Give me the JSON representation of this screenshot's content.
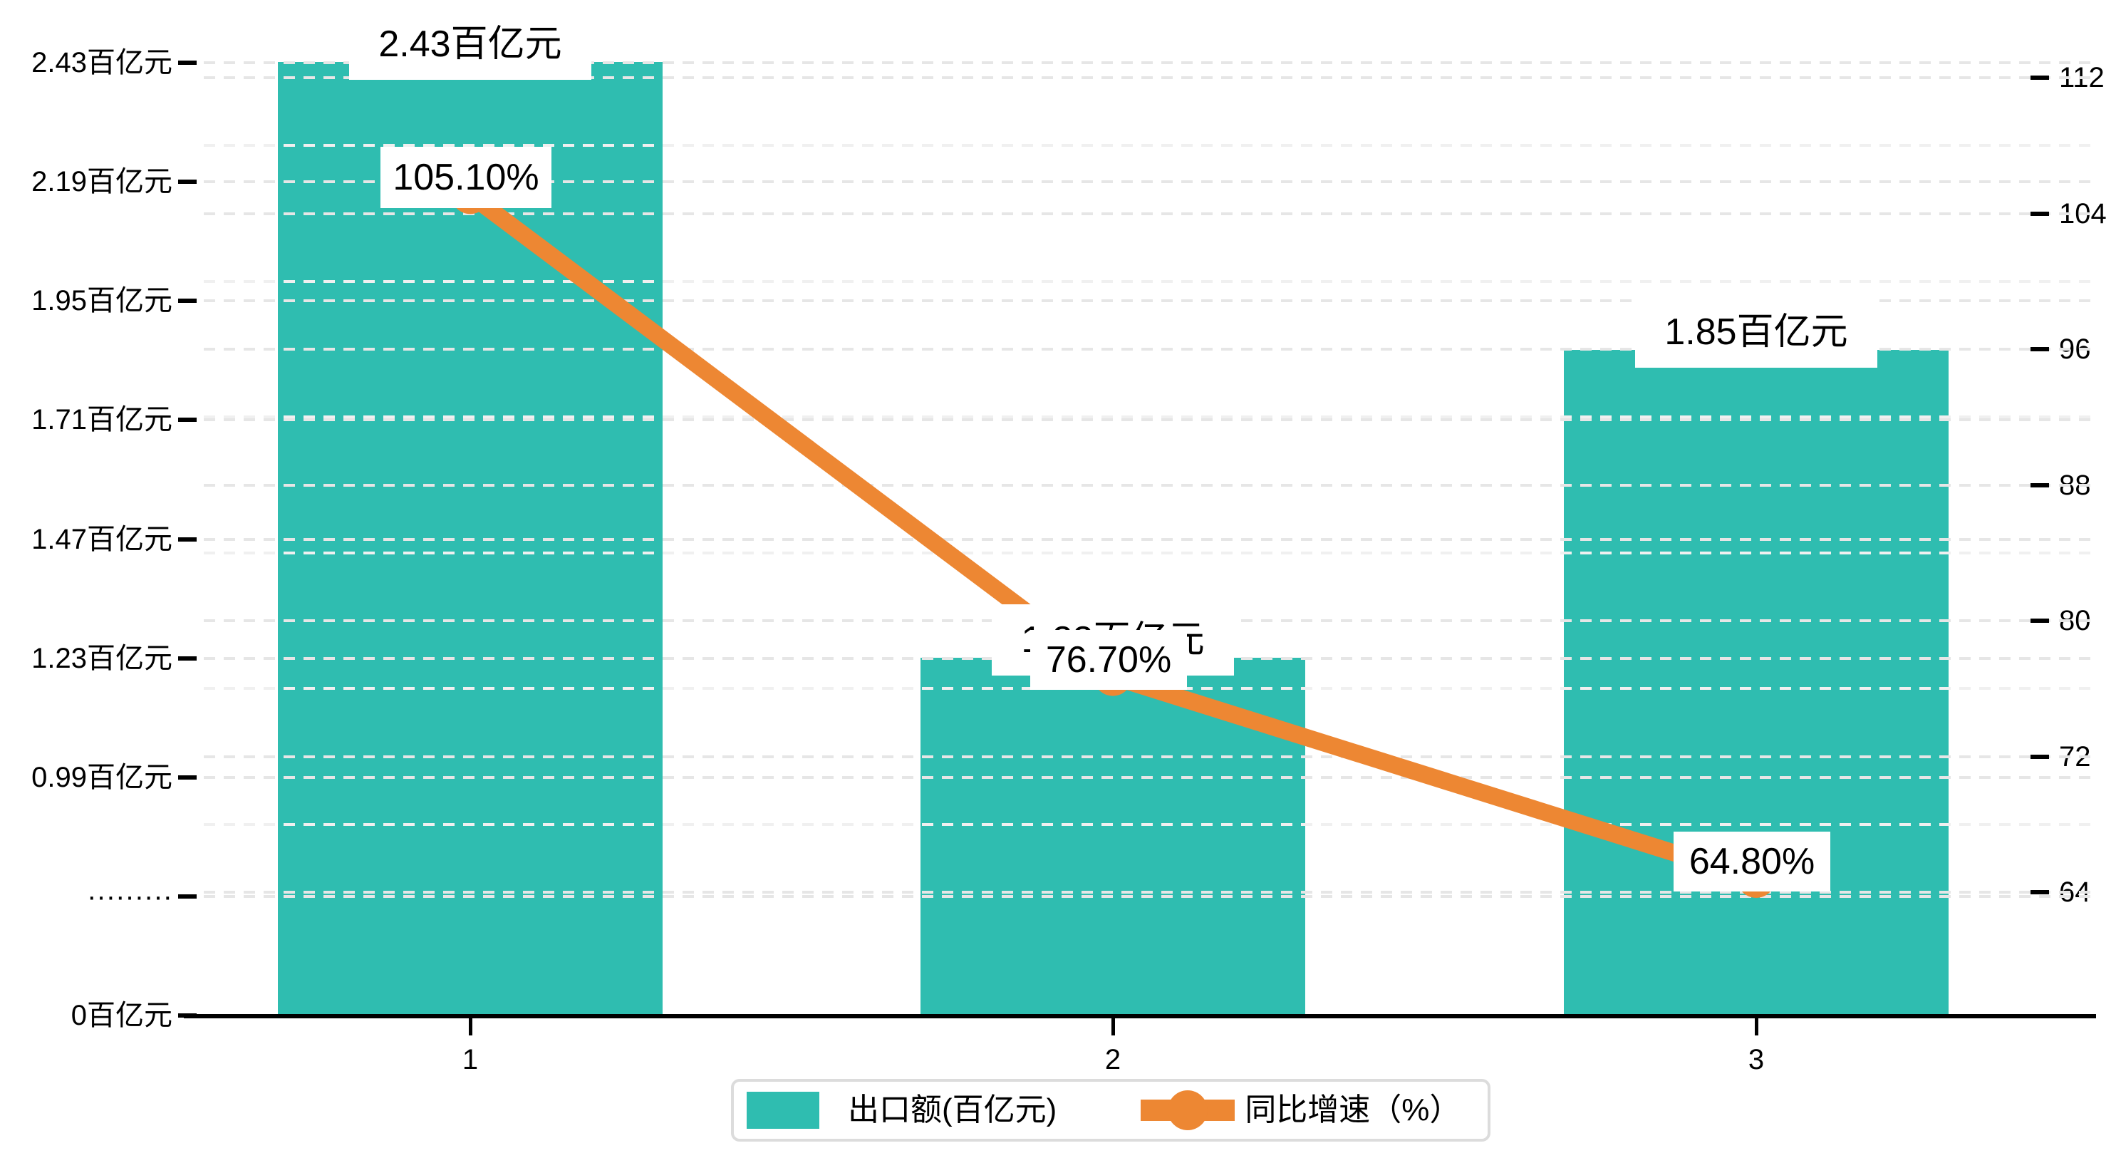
{
  "chart_data": {
    "type": "combo",
    "categories": [
      "1",
      "2",
      "3"
    ],
    "series": [
      {
        "name": "出口额(百亿元)",
        "type": "bar",
        "axis": "left",
        "color": "#2fbdb0",
        "values": [
          2.43,
          1.23,
          1.85
        ],
        "data_labels": [
          "2.43百亿元",
          "1.23百亿元",
          "1.85百亿元"
        ]
      },
      {
        "name": "同比增速（%）",
        "type": "line",
        "axis": "right",
        "color": "#ed8733",
        "values": [
          105.1,
          76.7,
          64.8
        ],
        "data_labels": [
          "105.10%",
          "76.70%",
          "64.80%"
        ]
      }
    ],
    "left_axis": {
      "unit": "百亿元",
      "tick_labels": [
        "2.43百亿元",
        "2.19百亿元",
        "1.95百亿元",
        "1.71百亿元",
        "1.47百亿元",
        "1.23百亿元",
        "0.99百亿元",
        "·········",
        "0百亿元"
      ],
      "tick_values": [
        2.43,
        2.19,
        1.95,
        1.71,
        1.47,
        1.23,
        0.99,
        null,
        0
      ],
      "broken_axis": true
    },
    "right_axis": {
      "tick_labels": [
        "112",
        "104",
        "96",
        "88",
        "80",
        "72",
        "64"
      ],
      "tick_values": [
        112,
        104,
        96,
        88,
        80,
        72,
        64
      ],
      "minor_tick_values": [
        108,
        100,
        92,
        84,
        76,
        68
      ]
    },
    "x_axis": {
      "tick_labels": [
        "1",
        "2",
        "3"
      ]
    },
    "legend": {
      "items": [
        {
          "label": "出口额(百亿元)",
          "marker": "bar-swatch"
        },
        {
          "label": "同比增速（%）",
          "marker": "line-dot"
        }
      ]
    },
    "grid": true,
    "colors": {
      "bar": "#2fbdb0",
      "line": "#ed8733",
      "gridline": "#e6e6e6",
      "gridline_minor": "#f0f0f0",
      "axis": "#000000",
      "label_box": "#ffffff",
      "legend_border": "#dcdcdc"
    }
  }
}
